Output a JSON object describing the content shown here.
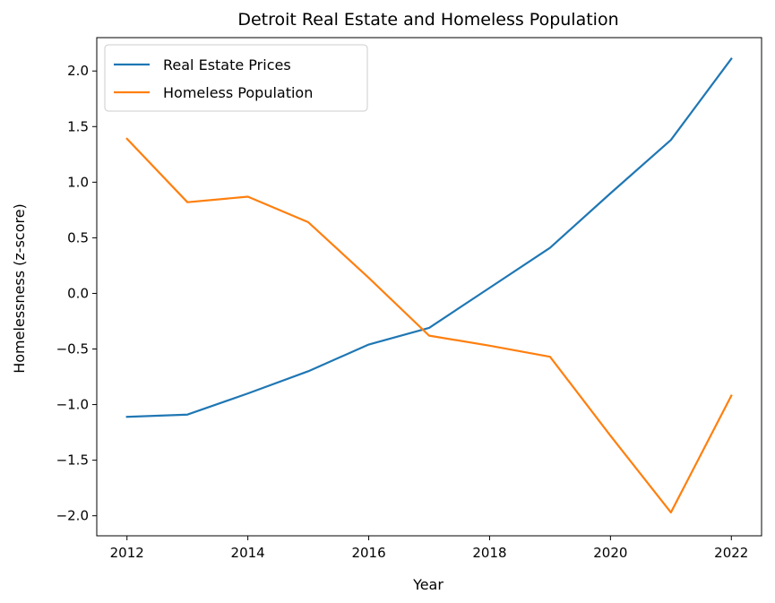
{
  "chart_data": {
    "type": "line",
    "title": "Detroit Real Estate and Homeless Population",
    "xlabel": "Year",
    "ylabel": "Homelessness (z-score)",
    "xlim": [
      2011.5,
      2022.5
    ],
    "ylim": [
      -2.18,
      2.3
    ],
    "x_ticks": [
      2012,
      2014,
      2016,
      2018,
      2020,
      2022
    ],
    "y_ticks": [
      -2.0,
      -1.5,
      -1.0,
      -0.5,
      0.0,
      0.5,
      1.0,
      1.5,
      2.0
    ],
    "grid": false,
    "legend_position": "top-left",
    "x": [
      2012,
      2013,
      2014,
      2015,
      2016,
      2017,
      2018,
      2019,
      2020,
      2021,
      2022
    ],
    "series": [
      {
        "name": "Real Estate Prices",
        "color": "#1f77b4",
        "values": [
          -1.11,
          -1.09,
          -0.9,
          -0.7,
          -0.46,
          -0.31,
          0.05,
          0.41,
          0.9,
          1.38,
          2.11
        ]
      },
      {
        "name": "Homeless Population",
        "color": "#ff7f0e",
        "values": [
          1.39,
          0.82,
          0.87,
          0.64,
          0.14,
          -0.38,
          -0.47,
          -0.57,
          -1.28,
          -1.97,
          -0.92
        ]
      }
    ]
  }
}
